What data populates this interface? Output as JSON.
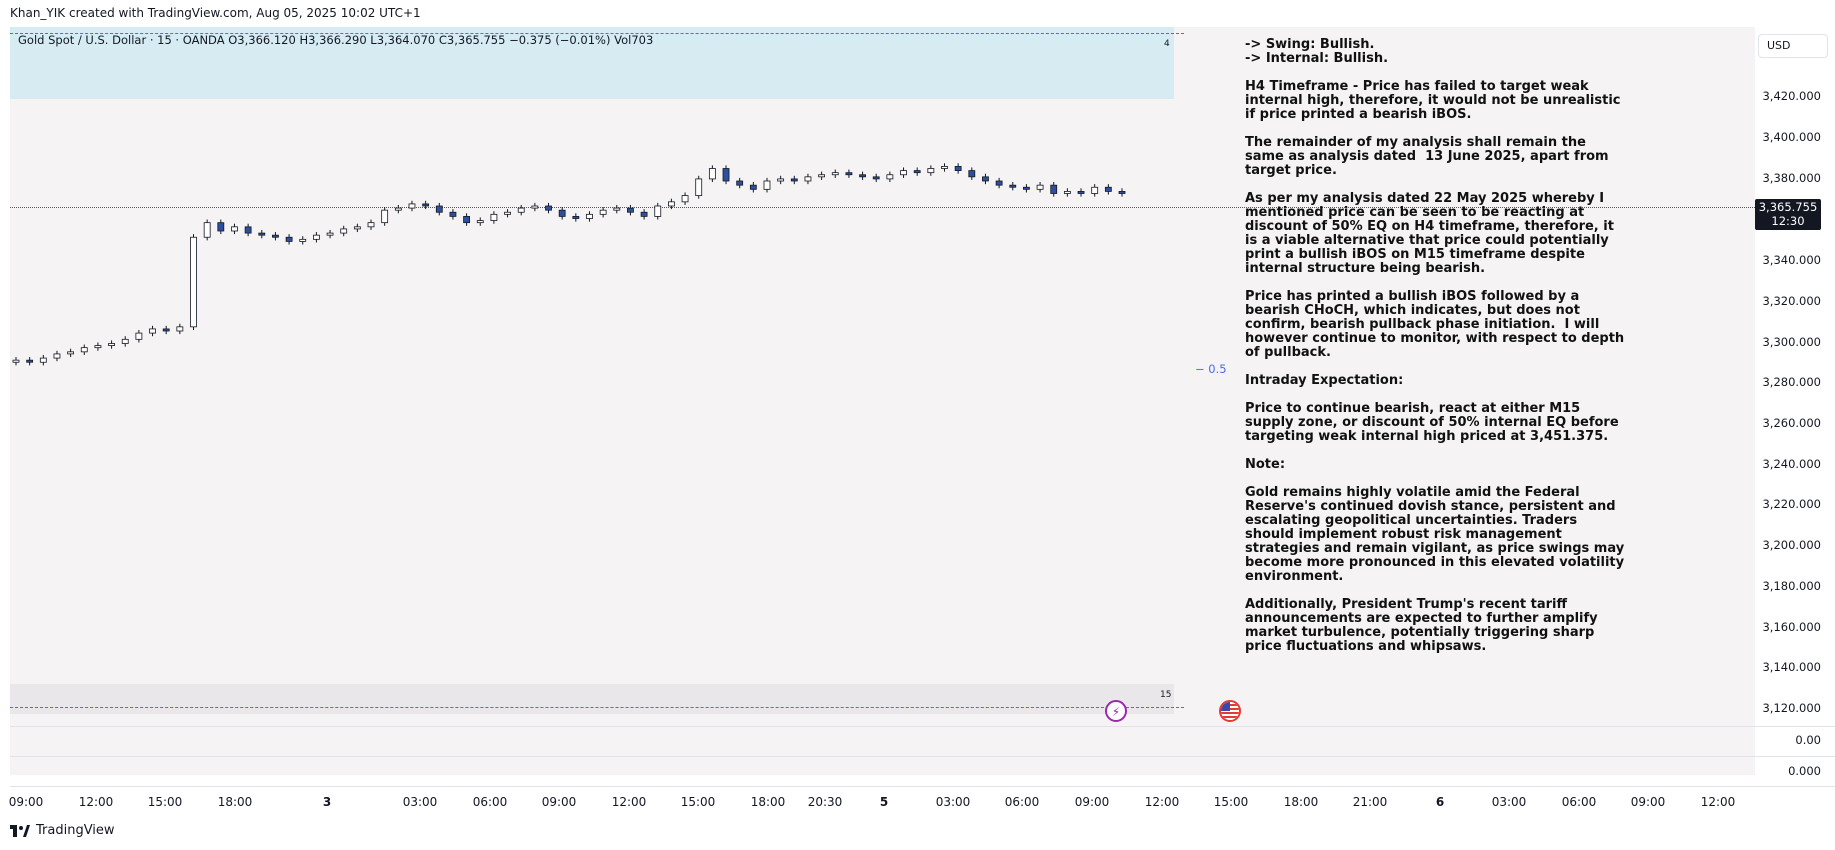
{
  "header": {
    "attribution": "Khan_YIK created with TradingView.com, Aug 05, 2025 10:02 UTC+1"
  },
  "symbol": {
    "info": "Gold Spot / U.S. Dollar · 15 · OANDA  O3,366.120  H3,366.290  L3,364.070  C3,365.755  −0.375 (−0.01%)  Vol703",
    "zone_top_num": "4",
    "zone_bottom_num": "15"
  },
  "level_label": "− 0.5",
  "analysis": [
    "-> Swing: Bullish.\n-> Internal: Bullish.",
    "H4 Timeframe - Price has failed to target weak internal high, therefore, it would not be unrealistic if price printed a bearish iBOS.",
    "The remainder of my analysis shall remain the same as analysis dated  13 June 2025, apart from target price.",
    "As per my analysis dated 22 May 2025 whereby I mentioned price can be seen to be reacting at discount of 50% EQ on H4 timeframe, therefore, it is a viable alternative that price could potentially print a bullish iBOS on M15 timeframe despite internal structure being bearish.",
    "Price has printed a bullish iBOS followed by a bearish CHoCH, which indicates, but does not confirm, bearish pullback phase initiation.  I will however continue to monitor, with respect to depth of pullback.",
    "Intraday Expectation:",
    "Price to continue bearish, react at either M15 supply zone, or discount of 50% internal EQ before targeting weak internal high priced at 3,451.375.",
    "Note:",
    "Gold remains highly volatile amid the Federal Reserve's continued dovish stance, persistent and escalating geopolitical uncertainties. Traders should implement robust risk management strategies and remain vigilant, as price swings may become more pronounced in this elevated volatility environment.",
    "Additionally, President Trump's recent tariff announcements are expected to further amplify market turbulence, potentially triggering sharp price fluctuations and whipsaws."
  ],
  "price_axis": {
    "currency": "USD",
    "ticks": [
      "3,420.000",
      "3,400.000",
      "3,380.000",
      "3,340.000",
      "3,320.000",
      "3,300.000",
      "3,280.000",
      "3,260.000",
      "3,240.000",
      "3,220.000",
      "3,200.000",
      "3,180.000",
      "3,160.000",
      "3,140.000",
      "3,120.000"
    ],
    "last_price": "3,365.755",
    "countdown": "12:30",
    "panel1_value": "0.00",
    "panel2_value": "0.000"
  },
  "time_axis": [
    "09:00",
    "12:00",
    "15:00",
    "18:00",
    "3",
    "03:00",
    "06:00",
    "09:00",
    "12:00",
    "15:00",
    "18:00",
    "20:30",
    "5",
    "03:00",
    "06:00",
    "09:00",
    "12:00",
    "15:00",
    "18:00",
    "21:00",
    "6",
    "03:00",
    "06:00",
    "09:00",
    "12:00"
  ],
  "footer": {
    "brand": "TradingView"
  },
  "icons": {
    "lightning": "lightning-icon",
    "flag": "us-flag-icon"
  },
  "colors": {
    "bull": "#ffffff",
    "bear": "#2d4fa0",
    "accent": "#4a6ee0"
  },
  "chart_data": {
    "type": "candlestick",
    "series": [
      {
        "name": "Gold Spot / U.S. Dollar",
        "close": [
          3286,
          3285,
          3287,
          3289,
          3290,
          3292,
          3293,
          3294,
          3296,
          3299,
          3301,
          3300,
          3302,
          3345,
          3352,
          3348,
          3350,
          3347,
          3346,
          3345,
          3343,
          3344,
          3346,
          3347,
          3349,
          3350,
          3352,
          3358,
          3359,
          3361,
          3360,
          3357,
          3355,
          3352,
          3353,
          3356,
          3357,
          3359,
          3360,
          3358,
          3355,
          3354,
          3356,
          3358,
          3359,
          3357,
          3355,
          3360,
          3362,
          3365,
          3373,
          3378,
          3372,
          3370,
          3368,
          3372,
          3373,
          3372,
          3374,
          3375,
          3376,
          3375,
          3374,
          3373,
          3375,
          3377,
          3376,
          3378,
          3379,
          3377,
          3374,
          3372,
          3370,
          3369,
          3368,
          3370,
          3366,
          3367,
          3366,
          3369,
          3367,
          3366
        ]
      }
    ],
    "ylim": [
      3110,
      3440
    ]
  }
}
